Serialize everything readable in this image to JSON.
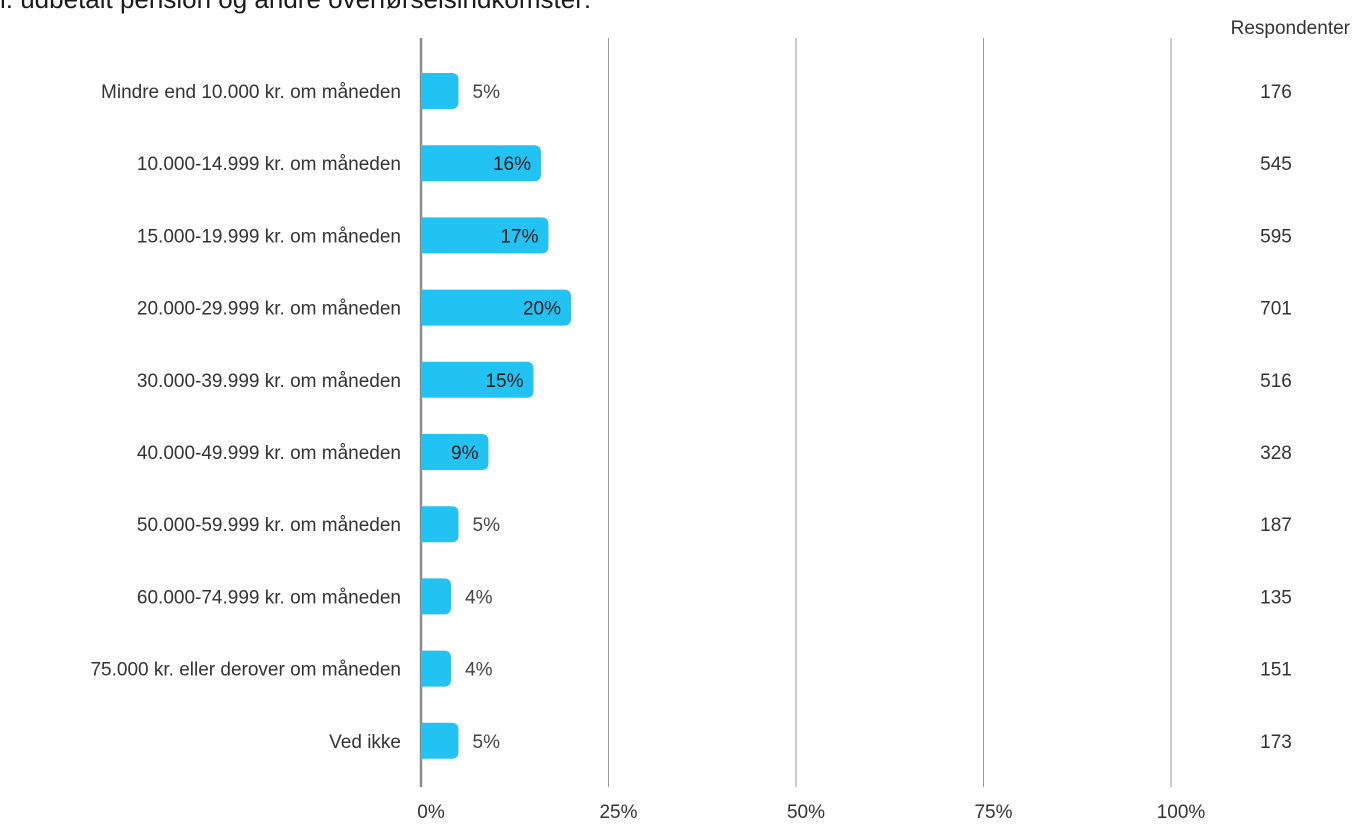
{
  "title": "i: udbetalt pension og andre overførselsindkomster:",
  "respondents_header": "Respondenter",
  "bar_color": "#22c3f3",
  "chart_data": {
    "type": "bar",
    "orientation": "horizontal",
    "title": "i: udbetalt pension og andre overførselsindkomster:",
    "xlim": [
      0,
      100
    ],
    "xticks": [
      "0%",
      "25%",
      "50%",
      "75%",
      "100%"
    ],
    "xtick_values": [
      0,
      25,
      50,
      75,
      100
    ],
    "grid": true,
    "categories": [
      "Mindre end 10.000 kr. om måneden",
      "10.000-14.999 kr. om måneden",
      "15.000-19.999 kr. om måneden",
      "20.000-29.999 kr. om måneden",
      "30.000-39.999 kr. om måneden",
      "40.000-49.999 kr. om måneden",
      "50.000-59.999 kr. om måneden",
      "60.000-74.999 kr. om måneden",
      "75.000 kr. eller derover om måneden",
      "Ved ikke"
    ],
    "values": [
      5,
      16,
      17,
      20,
      15,
      9,
      5,
      4,
      4,
      5
    ],
    "value_labels": [
      "5%",
      "16%",
      "17%",
      "20%",
      "15%",
      "9%",
      "5%",
      "4%",
      "4%",
      "5%"
    ],
    "respondents": [
      "176",
      "545",
      "595",
      "701",
      "516",
      "328",
      "187",
      "135",
      "151",
      "173"
    ]
  }
}
